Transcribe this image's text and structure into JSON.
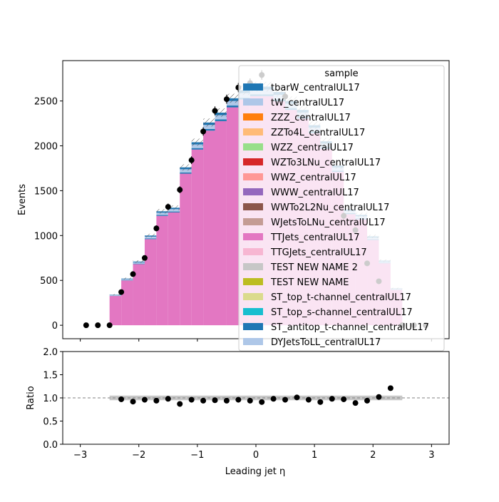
{
  "chart_data": [
    {
      "type": "bar",
      "panel": "main",
      "subtype": "stacked-histogram-with-data",
      "ylabel": "Events",
      "xlim": [
        -3.3,
        3.3
      ],
      "ylim": [
        -150,
        2950
      ],
      "yticks": [
        0,
        500,
        1000,
        1500,
        2000,
        2500
      ],
      "bin_edges": [
        -2.5,
        -2.3,
        -2.1,
        -1.9,
        -1.7,
        -1.5,
        -1.3,
        -1.1,
        -0.9,
        -0.7,
        -0.5,
        -0.3,
        -0.1,
        0.1,
        0.3,
        0.5,
        0.7,
        0.9,
        1.1,
        1.3,
        1.5,
        1.7,
        1.9,
        2.1,
        2.3,
        2.5
      ],
      "mc_total": [
        340,
        520,
        710,
        1000,
        1270,
        1310,
        1760,
        2040,
        2260,
        2370,
        2530,
        2620,
        2660,
        2660,
        2600,
        2500,
        2400,
        2230,
        2050,
        1780,
        1290,
        1230,
        990,
        720,
        410
      ],
      "stack_series": [
        {
          "name": "TTJets_centralUL17",
          "color": "#e377c2",
          "fraction": 0.96
        },
        {
          "name": "ST_antitop_t-channel_centralUL17",
          "color": "#1f77b4",
          "fraction": 0.008
        },
        {
          "name": "DYJetsToLL_centralUL17",
          "color": "#aec7e8",
          "fraction": 0.008
        },
        {
          "name": "tW_centralUL17",
          "color": "#aec7e8",
          "fraction": 0.012
        },
        {
          "name": "tbarW_centralUL17",
          "color": "#1f77b4",
          "fraction": 0.012
        }
      ],
      "data_points": [
        {
          "x": -2.9,
          "y": 0
        },
        {
          "x": -2.7,
          "y": 0
        },
        {
          "x": -2.5,
          "y": 0
        },
        {
          "x": -2.3,
          "y": 370
        },
        {
          "x": -2.1,
          "y": 570
        },
        {
          "x": -1.9,
          "y": 750
        },
        {
          "x": -1.7,
          "y": 1080
        },
        {
          "x": -1.5,
          "y": 1320
        },
        {
          "x": -1.3,
          "y": 1510
        },
        {
          "x": -1.1,
          "y": 1840
        },
        {
          "x": -0.9,
          "y": 2160
        },
        {
          "x": -0.7,
          "y": 2390
        },
        {
          "x": -0.5,
          "y": 2520
        },
        {
          "x": -0.3,
          "y": 2650
        },
        {
          "x": -0.1,
          "y": 2700
        },
        {
          "x": 0.1,
          "y": 2790
        },
        {
          "x": 0.5,
          "y": 2550
        },
        {
          "x": 1.5,
          "y": 1220
        },
        {
          "x": 1.7,
          "y": 1060
        },
        {
          "x": 1.9,
          "y": 690
        },
        {
          "x": 2.1,
          "y": 490
        },
        {
          "x": 2.5,
          "y": 0
        },
        {
          "x": 2.7,
          "y": 0
        },
        {
          "x": 2.9,
          "y": 0
        }
      ],
      "legend": {
        "title": "sample",
        "placement": "upper-right",
        "entries": [
          {
            "label": "tbarW_centralUL17",
            "color": "#1f77b4"
          },
          {
            "label": "tW_centralUL17",
            "color": "#aec7e8"
          },
          {
            "label": "ZZZ_centralUL17",
            "color": "#ff7f0e"
          },
          {
            "label": "ZZTo4L_centralUL17",
            "color": "#ffbb78"
          },
          {
            "label": "WZZ_centralUL17",
            "color": "#98df8a"
          },
          {
            "label": "WZTo3LNu_centralUL17",
            "color": "#d62728"
          },
          {
            "label": "WWZ_centralUL17",
            "color": "#ff9896"
          },
          {
            "label": "WWW_centralUL17",
            "color": "#9467bd"
          },
          {
            "label": "WWTo2L2Nu_centralUL17",
            "color": "#8c564b"
          },
          {
            "label": "WJetsToLNu_centralUL17",
            "color": "#c49c94"
          },
          {
            "label": "TTJets_centralUL17",
            "color": "#e377c2"
          },
          {
            "label": "TTGJets_centralUL17",
            "color": "#f7b6d2"
          },
          {
            "label": "TEST NEW NAME 2",
            "color": "#c7c7c7"
          },
          {
            "label": "TEST NEW NAME",
            "color": "#bcbd22"
          },
          {
            "label": "ST_top_t-channel_centralUL17",
            "color": "#dbdb8d"
          },
          {
            "label": "ST_top_s-channel_centralUL17",
            "color": "#17becf"
          },
          {
            "label": "ST_antitop_t-channel_centralUL17",
            "color": "#1f77b4"
          },
          {
            "label": "DYJetsToLL_centralUL17",
            "color": "#aec7e8"
          }
        ]
      }
    },
    {
      "type": "scatter",
      "panel": "ratio",
      "xlabel": "Leading jet  η",
      "ylabel": "Ratio",
      "xlim": [
        -3.3,
        3.3
      ],
      "ylim": [
        0.0,
        2.0
      ],
      "xticks": [
        -3,
        -2,
        -1,
        0,
        1,
        2,
        3
      ],
      "yticks": [
        0.0,
        0.5,
        1.0,
        1.5,
        2.0
      ],
      "reference_line": 1.0,
      "points": [
        {
          "x": -2.3,
          "y": 0.97
        },
        {
          "x": -2.1,
          "y": 0.92
        },
        {
          "x": -1.9,
          "y": 0.96
        },
        {
          "x": -1.7,
          "y": 0.94
        },
        {
          "x": -1.5,
          "y": 0.98
        },
        {
          "x": -1.3,
          "y": 0.87
        },
        {
          "x": -1.1,
          "y": 0.96
        },
        {
          "x": -0.9,
          "y": 0.94
        },
        {
          "x": -0.7,
          "y": 0.95
        },
        {
          "x": -0.5,
          "y": 0.94
        },
        {
          "x": -0.3,
          "y": 0.96
        },
        {
          "x": -0.1,
          "y": 0.94
        },
        {
          "x": 0.1,
          "y": 0.91
        },
        {
          "x": 0.3,
          "y": 0.98
        },
        {
          "x": 0.5,
          "y": 0.96
        },
        {
          "x": 0.7,
          "y": 1.01
        },
        {
          "x": 0.9,
          "y": 0.96
        },
        {
          "x": 1.1,
          "y": 0.91
        },
        {
          "x": 1.3,
          "y": 0.98
        },
        {
          "x": 1.5,
          "y": 0.97
        },
        {
          "x": 1.7,
          "y": 0.89
        },
        {
          "x": 1.9,
          "y": 0.94
        },
        {
          "x": 2.1,
          "y": 1.02
        },
        {
          "x": 2.3,
          "y": 1.21
        }
      ]
    }
  ]
}
